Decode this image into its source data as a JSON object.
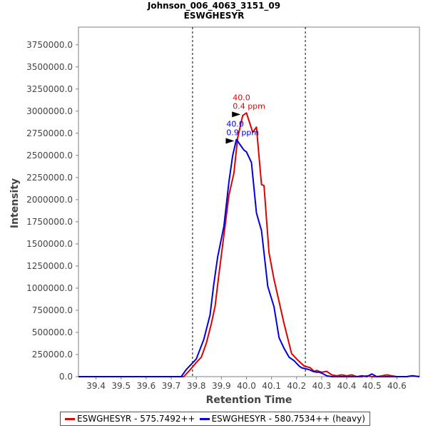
{
  "chart_data": {
    "type": "line",
    "title": "Johnson_006_4063_3151_09",
    "subtitle": "ESWGHESYR",
    "xlabel": "Retention Time",
    "ylabel": "Intensity",
    "xlim": [
      39.33,
      40.69
    ],
    "ylim": [
      0,
      3950000
    ],
    "xticks": [
      "39.4",
      "39.5",
      "39.6",
      "39.7",
      "39.8",
      "39.9",
      "40.0",
      "40.1",
      "40.2",
      "40.3",
      "40.4",
      "40.5",
      "40.6"
    ],
    "yticks": [
      "0.0",
      "250000.0",
      "500000.0",
      "750000.0",
      "1000000.0",
      "1250000.0",
      "1500000.0",
      "1750000.0",
      "2000000.0",
      "2250000.0",
      "2500000.0",
      "2750000.0",
      "3000000.0",
      "3250000.0",
      "3500000.0",
      "3750000.0"
    ],
    "ytick_values": [
      0,
      250000,
      500000,
      750000,
      1000000,
      1250000,
      1500000,
      1750000,
      2000000,
      2250000,
      2500000,
      2750000,
      3000000,
      3250000,
      3500000,
      3750000
    ],
    "grid": false,
    "legend_position": "bottom",
    "vlines": [
      39.785,
      40.235
    ],
    "series": [
      {
        "name": "ESWGHESYR - 575.7492++",
        "color": "#e00000",
        "x": [
          39.33,
          39.75,
          39.77,
          39.8,
          39.82,
          39.84,
          39.86,
          39.875,
          39.89,
          39.91,
          39.93,
          39.95,
          39.965,
          39.985,
          40.0,
          40.025,
          40.04,
          40.06,
          40.07,
          40.09,
          40.11,
          40.13,
          40.15,
          40.18,
          40.2,
          40.23,
          40.255,
          40.27,
          40.28,
          40.3,
          40.32,
          40.34,
          40.36,
          40.38,
          40.4,
          40.42,
          40.44,
          40.46,
          40.48,
          40.5,
          40.52,
          40.54,
          40.56,
          40.58,
          40.6,
          40.62,
          40.64,
          40.66,
          40.69
        ],
        "y": [
          0,
          0,
          60000,
          160000,
          220000,
          380000,
          600000,
          800000,
          1150000,
          1600000,
          2050000,
          2300000,
          2700000,
          2950000,
          2980000,
          2760000,
          2820000,
          2170000,
          2160000,
          1400000,
          1100000,
          850000,
          600000,
          260000,
          200000,
          120000,
          100000,
          60000,
          70000,
          50000,
          60000,
          20000,
          10000,
          20000,
          10000,
          20000,
          0,
          0,
          10000,
          0,
          0,
          10000,
          20000,
          10000,
          0,
          0,
          0,
          10000,
          0
        ]
      },
      {
        "name": "ESWGHESYR - 580.7534++ (heavy)",
        "color": "#0000e0",
        "x": [
          39.33,
          39.74,
          39.76,
          39.8,
          39.83,
          39.855,
          39.87,
          39.885,
          39.91,
          39.93,
          39.945,
          39.96,
          39.975,
          39.99,
          40.0,
          40.02,
          40.04,
          40.06,
          40.085,
          40.11,
          40.13,
          40.15,
          40.17,
          40.19,
          40.21,
          40.22,
          40.25,
          40.265,
          40.28,
          40.29,
          40.3,
          40.32,
          40.34,
          40.36,
          40.38,
          40.4,
          40.42,
          40.44,
          40.46,
          40.48,
          40.5,
          40.52,
          40.54,
          40.56,
          40.58,
          40.6,
          40.62,
          40.64,
          40.66,
          40.69
        ],
        "y": [
          0,
          0,
          80000,
          200000,
          420000,
          700000,
          1050000,
          1350000,
          1700000,
          2200000,
          2500000,
          2680000,
          2620000,
          2560000,
          2540000,
          2420000,
          1850000,
          1650000,
          1020000,
          790000,
          440000,
          320000,
          220000,
          180000,
          120000,
          100000,
          80000,
          60000,
          50000,
          50000,
          40000,
          10000,
          0,
          0,
          0,
          0,
          0,
          0,
          10000,
          0,
          30000,
          0,
          0,
          0,
          0,
          0,
          0,
          0,
          10000,
          0
        ]
      }
    ],
    "annotations": [
      {
        "series": 0,
        "x": 39.985,
        "y": 2980000,
        "line1": "40.0",
        "line2": "0.4 ppm"
      },
      {
        "series": 1,
        "x": 39.96,
        "y": 2680000,
        "line1": "40.0",
        "line2": "0.9 ppm"
      }
    ]
  }
}
